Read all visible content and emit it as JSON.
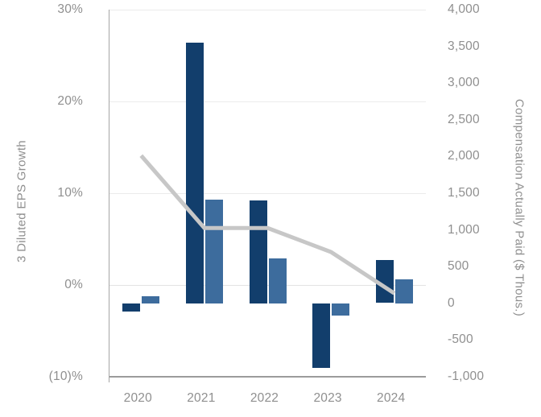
{
  "chart_data": {
    "type": "bar",
    "subtype": "combo-bar-line-dual-axis",
    "categories": [
      "2020",
      "2021",
      "2022",
      "2023",
      "2024"
    ],
    "series": [
      {
        "name": "Dark blue bars",
        "kind": "bar",
        "axis": "right",
        "color": "#123e6c",
        "values": [
          -110,
          3550,
          1400,
          -875,
          585
        ]
      },
      {
        "name": "Light blue bars",
        "kind": "bar",
        "axis": "right",
        "color": "#3d6c9d",
        "values": [
          100,
          1415,
          610,
          -160,
          325
        ]
      },
      {
        "name": "Gray line",
        "kind": "line",
        "axis": "left",
        "color": "#c7c7c7",
        "values": [
          14.1,
          6.2,
          6.2,
          3.6,
          -0.9
        ]
      }
    ],
    "left_axis": {
      "label": "3 Diluted EPS Growth",
      "tick_labels": [
        "30%",
        "20%",
        "10%",
        "0%",
        "(10)%"
      ],
      "tick_values": [
        30,
        20,
        10,
        0,
        -10
      ],
      "range": [
        -10,
        30
      ],
      "unit": "%"
    },
    "right_axis": {
      "label": "Compensation Actually Paid ($ Thous.)",
      "tick_labels": [
        "4,000",
        "3,500",
        "3,000",
        "2,500",
        "2,000",
        "1,500",
        "1,000",
        "500",
        "0",
        "-500",
        "-1,000"
      ],
      "tick_values": [
        4000,
        3500,
        3000,
        2500,
        2000,
        1500,
        1000,
        500,
        0,
        -500,
        -1000
      ],
      "range": [
        -1000,
        4000
      ],
      "unit": "$ thousands"
    },
    "x_axis": {
      "tick_labels": [
        "2020",
        "2021",
        "2022",
        "2023",
        "2024"
      ]
    },
    "grid": true,
    "legend": "none",
    "title": ""
  },
  "colors": {
    "background": "#ffffff",
    "dark_bar": "#123e6c",
    "light_bar": "#3d6c9d",
    "line": "#c7c7c7",
    "tick_text": "#8f8f8f",
    "gridline": "#ebebeb",
    "zero_gridline": "#e3e3e3",
    "left_axis_line": "#a6a6a6",
    "bottom_axis_line": "#9b9b9b"
  }
}
